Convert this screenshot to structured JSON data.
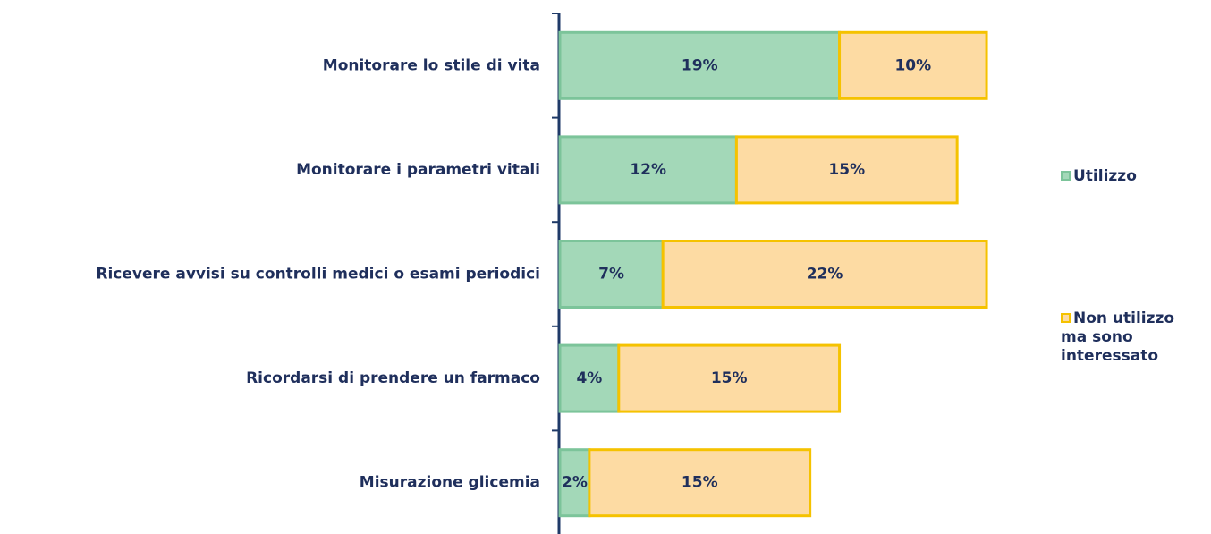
{
  "chart_data": {
    "type": "stacked-bar-horizontal",
    "categories": [
      "Monitorare lo stile di vita",
      "Monitorare i parametri vitali",
      "Ricevere avvisi su controlli medici o esami periodici",
      "Ricordarsi di prendere un farmaco",
      "Misurazione glicemia"
    ],
    "series": [
      {
        "name": "Utilizzo",
        "color": "#a3d8b8",
        "values": [
          19,
          12,
          7,
          4,
          2
        ],
        "value_labels": [
          "19%",
          "12%",
          "7%",
          "4%",
          "2%"
        ]
      },
      {
        "name": "Non utilizzo ma sono interessato",
        "color": "#fddba3",
        "values": [
          10,
          15,
          22,
          15,
          15
        ],
        "value_labels": [
          "10%",
          "15%",
          "22%",
          "15%",
          "15%"
        ]
      }
    ],
    "legend": "right"
  }
}
